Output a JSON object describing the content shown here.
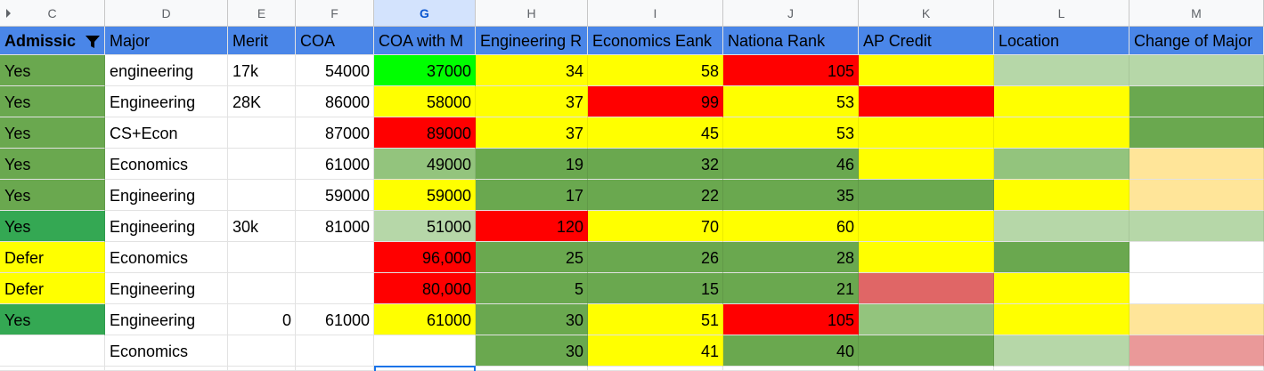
{
  "columns": [
    "C",
    "D",
    "E",
    "F",
    "G",
    "H",
    "I",
    "J",
    "K",
    "L",
    "M"
  ],
  "selected_column": "G",
  "header": [
    "Admissic",
    "Major",
    "Merit",
    "COA",
    "COA with M",
    "Engineering R",
    "Economics Eank",
    "Nationa Rank",
    "AP Credit",
    "Location",
    "Change of Major"
  ],
  "colors": {
    "header_bg": "#4a86e8",
    "green": "#6aa84f",
    "bright_green": "#00ff00",
    "mid_green": "#34a853",
    "light_green": "#93c47d",
    "pale_green": "#b6d7a8",
    "yellow": "#ffff00",
    "red": "#ff0000",
    "light_red": "#e06666",
    "pale_red": "#ea9999",
    "pale_orange": "#ffe599",
    "white": "#ffffff"
  },
  "rows": [
    {
      "c": "Yes",
      "d": "engineering",
      "e": "17k",
      "f": "54000",
      "g": "37000",
      "h": "34",
      "i": "58",
      "j": "105",
      "k": "",
      "l": "",
      "m": "",
      "bg": {
        "c": "#6aa84f",
        "g": "#00ff00",
        "h": "#ffff00",
        "i": "#ffff00",
        "j": "#ff0000",
        "k": "#ffff00",
        "l": "#b6d7a8",
        "m": "#b6d7a8"
      }
    },
    {
      "c": "Yes",
      "d": "Engineering",
      "e": "28K",
      "f": "86000",
      "g": "58000",
      "h": "37",
      "i": "99",
      "j": "53",
      "k": "",
      "l": "",
      "m": "",
      "bg": {
        "c": "#6aa84f",
        "g": "#ffff00",
        "h": "#ffff00",
        "i": "#ff0000",
        "j": "#ffff00",
        "k": "#ff0000",
        "l": "#ffff00",
        "m": "#6aa84f"
      }
    },
    {
      "c": "Yes",
      "d": "CS+Econ",
      "e": "",
      "f": "87000",
      "g": "89000",
      "h": "37",
      "i": "45",
      "j": "53",
      "k": "",
      "l": "",
      "m": "",
      "bg": {
        "c": "#6aa84f",
        "g": "#ff0000",
        "h": "#ffff00",
        "i": "#ffff00",
        "j": "#ffff00",
        "k": "#ffff00",
        "l": "#ffff00",
        "m": "#6aa84f"
      }
    },
    {
      "c": "Yes",
      "d": "Economics",
      "e": "",
      "f": "61000",
      "g": "49000",
      "h": "19",
      "i": "32",
      "j": "46",
      "k": "",
      "l": "",
      "m": "",
      "bg": {
        "c": "#6aa84f",
        "g": "#93c47d",
        "h": "#6aa84f",
        "i": "#6aa84f",
        "j": "#6aa84f",
        "k": "#ffff00",
        "l": "#93c47d",
        "m": "#ffe599"
      }
    },
    {
      "c": "Yes",
      "d": "Engineering",
      "e": "",
      "f": "59000",
      "g": "59000",
      "h": "17",
      "i": "22",
      "j": "35",
      "k": "",
      "l": "",
      "m": "",
      "bg": {
        "c": "#6aa84f",
        "g": "#ffff00",
        "h": "#6aa84f",
        "i": "#6aa84f",
        "j": "#6aa84f",
        "k": "#6aa84f",
        "l": "#ffff00",
        "m": "#ffe599"
      }
    },
    {
      "c": "Yes",
      "d": "Engineering",
      "e": "30k",
      "f": "81000",
      "g": "51000",
      "h": "120",
      "i": "70",
      "j": "60",
      "k": "",
      "l": "",
      "m": "",
      "bg": {
        "c": "#34a853",
        "g": "#b6d7a8",
        "h": "#ff0000",
        "i": "#ffff00",
        "j": "#ffff00",
        "k": "#ffff00",
        "l": "#b6d7a8",
        "m": "#b6d7a8"
      }
    },
    {
      "c": "Defer",
      "d": "Economics",
      "e": "",
      "f": "",
      "g": "96,000",
      "h": "25",
      "i": "26",
      "j": "28",
      "k": "",
      "l": "",
      "m": "",
      "bg": {
        "c": "#ffff00",
        "g": "#ff0000",
        "h": "#6aa84f",
        "i": "#6aa84f",
        "j": "#6aa84f",
        "k": "#ffff00",
        "l": "#6aa84f",
        "m": "#ffffff"
      }
    },
    {
      "c": "Defer",
      "d": "Engineering",
      "e": "",
      "f": "",
      "g": "80,000",
      "h": "5",
      "i": "15",
      "j": "21",
      "k": "",
      "l": "",
      "m": "",
      "bg": {
        "c": "#ffff00",
        "g": "#ff0000",
        "h": "#6aa84f",
        "i": "#6aa84f",
        "j": "#6aa84f",
        "k": "#e06666",
        "l": "#ffff00",
        "m": "#ffffff"
      }
    },
    {
      "c": "Yes",
      "d": "Engineering",
      "e": "0",
      "f": "61000",
      "g": "61000",
      "h": "30",
      "i": "51",
      "j": "105",
      "k": "",
      "l": "",
      "m": "",
      "bg": {
        "c": "#34a853",
        "g": "#ffff00",
        "h": "#6aa84f",
        "i": "#ffff00",
        "j": "#ff0000",
        "k": "#93c47d",
        "l": "#ffff00",
        "m": "#ffe599"
      }
    },
    {
      "c": "",
      "d": "Economics",
      "e": "",
      "f": "",
      "g": "",
      "h": "30",
      "i": "41",
      "j": "40",
      "k": "",
      "l": "",
      "m": "",
      "bg": {
        "c": "#ffffff",
        "g": "#ffffff",
        "h": "#6aa84f",
        "i": "#ffff00",
        "j": "#6aa84f",
        "k": "#6aa84f",
        "l": "#b6d7a8",
        "m": "#ea9999"
      }
    }
  ]
}
